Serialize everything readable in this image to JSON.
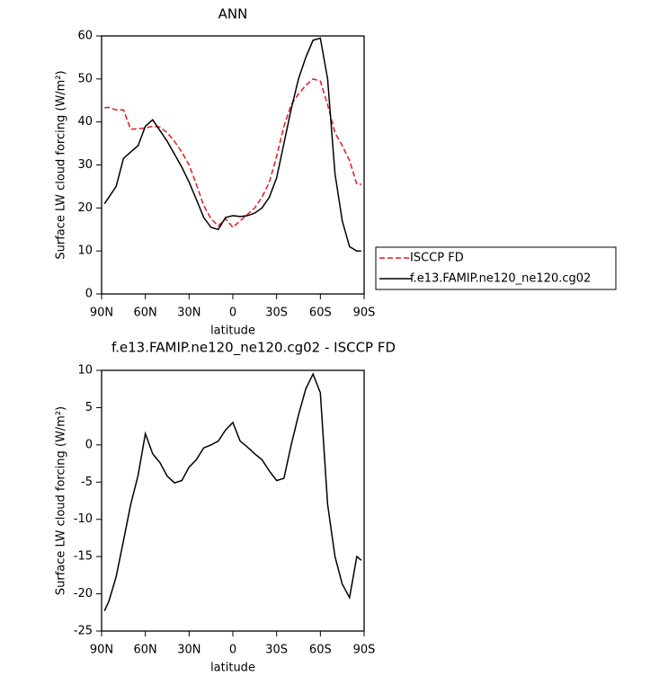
{
  "chart_data": [
    {
      "type": "line",
      "title": "ANN",
      "xlabel": "latitude",
      "ylabel": "Surface LW cloud forcing (W/m²)",
      "x": [
        88,
        85,
        80,
        75,
        70,
        65,
        60,
        55,
        50,
        45,
        40,
        35,
        30,
        25,
        20,
        15,
        10,
        5,
        0,
        -5,
        -10,
        -15,
        -20,
        -25,
        -30,
        -35,
        -40,
        -45,
        -50,
        -55,
        -60,
        -65,
        -70,
        -75,
        -80,
        -85,
        -88
      ],
      "series": [
        {
          "name": "ISCCP FD",
          "color": "#e41a1c",
          "style": "dashed",
          "values": [
            43.3,
            43.4,
            42.8,
            42.8,
            38.3,
            38.4,
            38.6,
            39,
            38.8,
            37.5,
            35.5,
            33,
            30,
            25.5,
            20.5,
            17.5,
            15.8,
            17.5,
            15.5,
            17,
            18.5,
            20,
            22.5,
            26,
            32,
            39,
            44,
            46.5,
            48.5,
            50,
            49.5,
            44,
            37.5,
            34.5,
            31,
            25.5,
            25.5
          ]
        },
        {
          "name": "f.e13.FAMIP.ne120_ne120.cg02",
          "color": "#000000",
          "style": "solid",
          "values": [
            21,
            22.5,
            25,
            31.5,
            33,
            34.5,
            39,
            40.5,
            38,
            35.5,
            32.5,
            29.5,
            26,
            22,
            17.8,
            15.5,
            15,
            17.8,
            18.2,
            18,
            18.2,
            18.8,
            20,
            22.5,
            27,
            35,
            43,
            50,
            55,
            59,
            59.5,
            50,
            28,
            17,
            11,
            10,
            10
          ]
        }
      ],
      "xlim": [
        90,
        -90
      ],
      "xticks": [
        {
          "value": 90,
          "label": "90N"
        },
        {
          "value": 60,
          "label": "60N"
        },
        {
          "value": 30,
          "label": "30N"
        },
        0,
        {
          "value": -30,
          "label": "30S"
        },
        {
          "value": -60,
          "label": "60S"
        },
        {
          "value": -90,
          "label": "90S"
        }
      ],
      "ylim": [
        0,
        60
      ],
      "yticks": [
        0,
        10,
        20,
        30,
        40,
        50,
        60
      ],
      "legend": "right"
    },
    {
      "type": "line",
      "title": "f.e13.FAMIP.ne120_ne120.cg02 - ISCCP FD",
      "xlabel": "latitude",
      "ylabel": "Surface LW cloud forcing (W/m²)",
      "x": [
        88,
        85,
        80,
        75,
        70,
        65,
        60,
        55,
        50,
        45,
        40,
        35,
        30,
        25,
        20,
        15,
        10,
        5,
        0,
        -5,
        -10,
        -15,
        -20,
        -25,
        -30,
        -35,
        -40,
        -45,
        -50,
        -55,
        -60,
        -65,
        -70,
        -75,
        -80,
        -85,
        -88
      ],
      "values": [
        -22.3,
        -21,
        -17.7,
        -12.9,
        -8,
        -4.1,
        1.5,
        -1.2,
        -2.4,
        -4.2,
        -5.1,
        -4.8,
        -3,
        -2,
        -0.4,
        0,
        0.5,
        2,
        3,
        0.5,
        -0.3,
        -1.2,
        -2,
        -3.5,
        -4.8,
        -4.5,
        0,
        4,
        7.5,
        9.5,
        7,
        -8,
        -15,
        -18.7,
        -20.5,
        -15,
        -15.5
      ],
      "color": "#000000",
      "xlim": [
        90,
        -90
      ],
      "xticks": [
        {
          "value": 90,
          "label": "90N"
        },
        {
          "value": 60,
          "label": "60N"
        },
        {
          "value": 30,
          "label": "30N"
        },
        0,
        {
          "value": -30,
          "label": "30S"
        },
        {
          "value": -60,
          "label": "60S"
        },
        {
          "value": -90,
          "label": "90S"
        }
      ],
      "ylim": [
        -25,
        10
      ],
      "yticks": [
        -25,
        -20,
        -15,
        -10,
        -5,
        0,
        5,
        10
      ]
    }
  ]
}
